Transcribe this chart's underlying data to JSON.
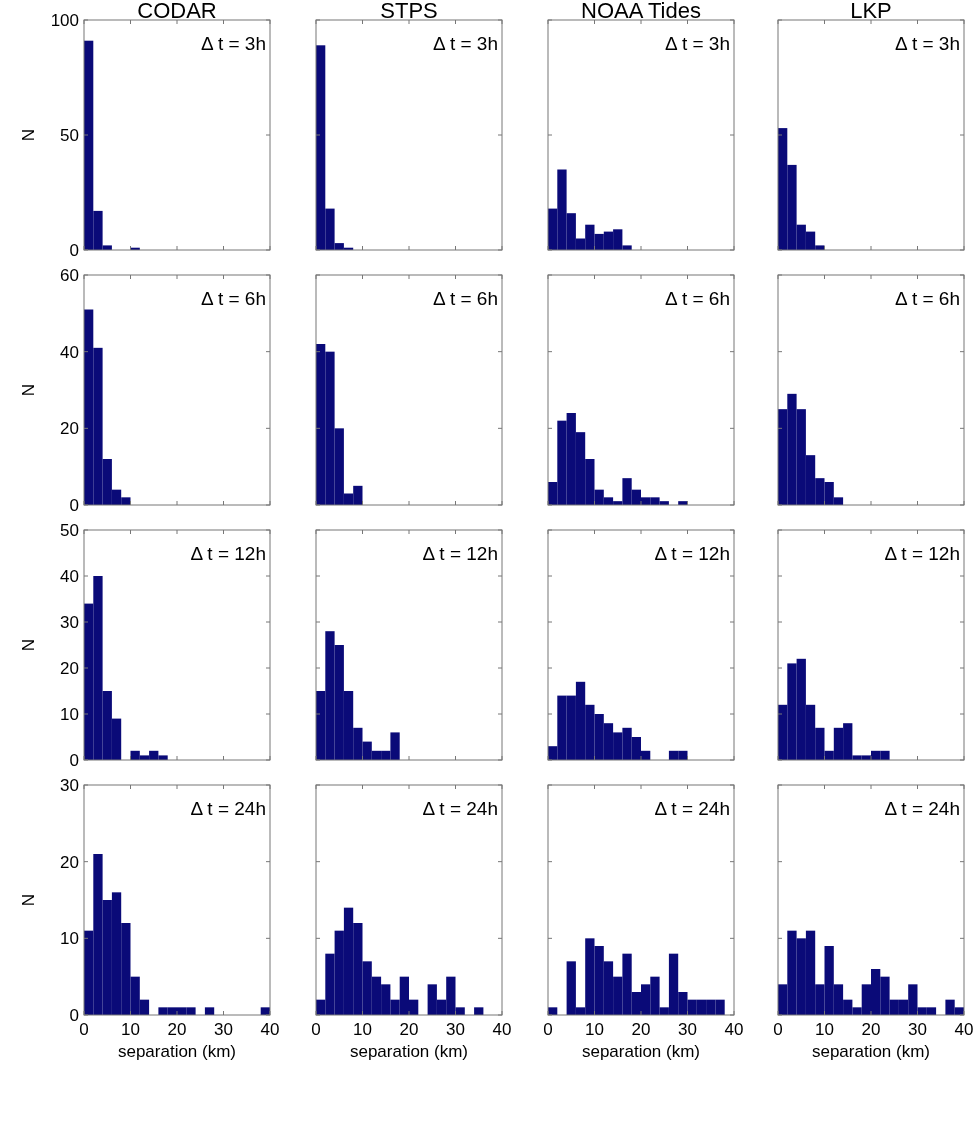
{
  "chart_data": [
    {
      "type": "histogram",
      "title": "CODAR",
      "ylabel": "N",
      "bins": [
        0,
        2,
        4,
        6,
        8,
        10,
        12,
        14,
        16,
        18,
        20,
        22,
        24,
        26,
        28,
        30,
        32,
        34,
        36,
        38,
        40
      ],
      "values": [
        91,
        17,
        2,
        0,
        0,
        1,
        0,
        0,
        0,
        0,
        0,
        0,
        0,
        0,
        0,
        0,
        0,
        0,
        0,
        0
      ],
      "color": "#0a0a78",
      "xlim": [
        0,
        40
      ],
      "xticks": [
        0,
        10,
        20,
        30,
        40
      ],
      "ylim": [
        0,
        100
      ],
      "yticks": [
        0,
        50,
        100
      ],
      "tick_labels": "y",
      "annotations": [
        "Δ t = 3h"
      ]
    },
    {
      "type": "histogram",
      "title": "STPS",
      "bins": [
        0,
        2,
        4,
        6,
        8,
        10,
        12,
        14,
        16,
        18,
        20,
        22,
        24,
        26,
        28,
        30,
        32,
        34,
        36,
        38,
        40
      ],
      "values": [
        89,
        18,
        3,
        1,
        0,
        0,
        0,
        0,
        0,
        0,
        0,
        0,
        0,
        0,
        0,
        0,
        0,
        0,
        0,
        0
      ],
      "color": "#0a0a78",
      "xlim": [
        0,
        40
      ],
      "xticks": [
        0,
        10,
        20,
        30,
        40
      ],
      "ylim": [
        0,
        100
      ],
      "yticks": [
        0,
        50,
        100
      ],
      "tick_labels": false,
      "annotations": [
        "Δ t = 3h"
      ]
    },
    {
      "type": "histogram",
      "title": "NOAA Tides",
      "bins": [
        0,
        2,
        4,
        6,
        8,
        10,
        12,
        14,
        16,
        18,
        20,
        22,
        24,
        26,
        28,
        30,
        32,
        34,
        36,
        38,
        40
      ],
      "values": [
        18,
        35,
        16,
        5,
        11,
        7,
        8,
        9,
        2,
        0,
        0,
        0,
        0,
        0,
        0,
        0,
        0,
        0,
        0,
        0
      ],
      "color": "#0a0a78",
      "xlim": [
        0,
        40
      ],
      "xticks": [
        0,
        10,
        20,
        30,
        40
      ],
      "ylim": [
        0,
        100
      ],
      "yticks": [
        0,
        50,
        100
      ],
      "tick_labels": false,
      "annotations": [
        "Δ t = 3h"
      ]
    },
    {
      "type": "histogram",
      "title": "LKP",
      "bins": [
        0,
        2,
        4,
        6,
        8,
        10,
        12,
        14,
        16,
        18,
        20,
        22,
        24,
        26,
        28,
        30,
        32,
        34,
        36,
        38,
        40
      ],
      "values": [
        53,
        37,
        11,
        8,
        2,
        0,
        0,
        0,
        0,
        0,
        0,
        0,
        0,
        0,
        0,
        0,
        0,
        0,
        0,
        0
      ],
      "color": "#0a0a78",
      "xlim": [
        0,
        40
      ],
      "xticks": [
        0,
        10,
        20,
        30,
        40
      ],
      "ylim": [
        0,
        100
      ],
      "yticks": [
        0,
        50,
        100
      ],
      "tick_labels": false,
      "annotations": [
        "Δ t = 3h"
      ]
    },
    {
      "type": "histogram",
      "ylabel": "N",
      "bins": [
        0,
        2,
        4,
        6,
        8,
        10,
        12,
        14,
        16,
        18,
        20,
        22,
        24,
        26,
        28,
        30,
        32,
        34,
        36,
        38,
        40
      ],
      "values": [
        51,
        41,
        12,
        4,
        2,
        0,
        0,
        0,
        0,
        0,
        0,
        0,
        0,
        0,
        0,
        0,
        0,
        0,
        0,
        0
      ],
      "color": "#0a0a78",
      "xlim": [
        0,
        40
      ],
      "xticks": [
        0,
        10,
        20,
        30,
        40
      ],
      "ylim": [
        0,
        60
      ],
      "yticks": [
        0,
        20,
        40,
        60
      ],
      "tick_labels": "y",
      "annotations": [
        "Δ t = 6h"
      ]
    },
    {
      "type": "histogram",
      "bins": [
        0,
        2,
        4,
        6,
        8,
        10,
        12,
        14,
        16,
        18,
        20,
        22,
        24,
        26,
        28,
        30,
        32,
        34,
        36,
        38,
        40
      ],
      "values": [
        42,
        40,
        20,
        3,
        5,
        0,
        0,
        0,
        0,
        0,
        0,
        0,
        0,
        0,
        0,
        0,
        0,
        0,
        0,
        0
      ],
      "color": "#0a0a78",
      "xlim": [
        0,
        40
      ],
      "xticks": [
        0,
        10,
        20,
        30,
        40
      ],
      "ylim": [
        0,
        60
      ],
      "yticks": [
        0,
        20,
        40,
        60
      ],
      "tick_labels": false,
      "annotations": [
        "Δ t = 6h"
      ]
    },
    {
      "type": "histogram",
      "bins": [
        0,
        2,
        4,
        6,
        8,
        10,
        12,
        14,
        16,
        18,
        20,
        22,
        24,
        26,
        28,
        30,
        32,
        34,
        36,
        38,
        40
      ],
      "values": [
        6,
        22,
        24,
        19,
        12,
        4,
        2,
        1,
        7,
        4,
        2,
        2,
        1,
        0,
        1,
        0,
        0,
        0,
        0,
        0
      ],
      "color": "#0a0a78",
      "xlim": [
        0,
        40
      ],
      "xticks": [
        0,
        10,
        20,
        30,
        40
      ],
      "ylim": [
        0,
        60
      ],
      "yticks": [
        0,
        20,
        40,
        60
      ],
      "tick_labels": false,
      "annotations": [
        "Δ t = 6h"
      ]
    },
    {
      "type": "histogram",
      "bins": [
        0,
        2,
        4,
        6,
        8,
        10,
        12,
        14,
        16,
        18,
        20,
        22,
        24,
        26,
        28,
        30,
        32,
        34,
        36,
        38,
        40
      ],
      "values": [
        25,
        29,
        25,
        13,
        7,
        6,
        2,
        0,
        0,
        0,
        0,
        0,
        0,
        0,
        0,
        0,
        0,
        0,
        0,
        0
      ],
      "color": "#0a0a78",
      "xlim": [
        0,
        40
      ],
      "xticks": [
        0,
        10,
        20,
        30,
        40
      ],
      "ylim": [
        0,
        60
      ],
      "yticks": [
        0,
        20,
        40,
        60
      ],
      "tick_labels": false,
      "annotations": [
        "Δ t = 6h"
      ]
    },
    {
      "type": "histogram",
      "ylabel": "N",
      "bins": [
        0,
        2,
        4,
        6,
        8,
        10,
        12,
        14,
        16,
        18,
        20,
        22,
        24,
        26,
        28,
        30,
        32,
        34,
        36,
        38,
        40
      ],
      "values": [
        34,
        40,
        15,
        9,
        0,
        2,
        1,
        2,
        1,
        0,
        0,
        0,
        0,
        0,
        0,
        0,
        0,
        0,
        0,
        0
      ],
      "color": "#0a0a78",
      "xlim": [
        0,
        40
      ],
      "xticks": [
        0,
        10,
        20,
        30,
        40
      ],
      "ylim": [
        0,
        50
      ],
      "yticks": [
        0,
        10,
        20,
        30,
        40,
        50
      ],
      "tick_labels": "y",
      "annotations": [
        "Δ t = 12h"
      ]
    },
    {
      "type": "histogram",
      "bins": [
        0,
        2,
        4,
        6,
        8,
        10,
        12,
        14,
        16,
        18,
        20,
        22,
        24,
        26,
        28,
        30,
        32,
        34,
        36,
        38,
        40
      ],
      "values": [
        15,
        28,
        25,
        15,
        7,
        4,
        2,
        2,
        6,
        0,
        0,
        0,
        0,
        0,
        0,
        0,
        0,
        0,
        0,
        0
      ],
      "color": "#0a0a78",
      "xlim": [
        0,
        40
      ],
      "xticks": [
        0,
        10,
        20,
        30,
        40
      ],
      "ylim": [
        0,
        50
      ],
      "yticks": [
        0,
        10,
        20,
        30,
        40,
        50
      ],
      "tick_labels": false,
      "annotations": [
        "Δ t = 12h"
      ]
    },
    {
      "type": "histogram",
      "bins": [
        0,
        2,
        4,
        6,
        8,
        10,
        12,
        14,
        16,
        18,
        20,
        22,
        24,
        26,
        28,
        30,
        32,
        34,
        36,
        38,
        40
      ],
      "values": [
        3,
        14,
        14,
        17,
        12,
        10,
        8,
        6,
        7,
        5,
        2,
        0,
        0,
        2,
        2,
        0,
        0,
        0,
        0,
        0
      ],
      "color": "#0a0a78",
      "xlim": [
        0,
        40
      ],
      "xticks": [
        0,
        10,
        20,
        30,
        40
      ],
      "ylim": [
        0,
        50
      ],
      "yticks": [
        0,
        10,
        20,
        30,
        40,
        50
      ],
      "tick_labels": false,
      "annotations": [
        "Δ t = 12h"
      ]
    },
    {
      "type": "histogram",
      "bins": [
        0,
        2,
        4,
        6,
        8,
        10,
        12,
        14,
        16,
        18,
        20,
        22,
        24,
        26,
        28,
        30,
        32,
        34,
        36,
        38,
        40
      ],
      "values": [
        12,
        21,
        22,
        12,
        7,
        2,
        7,
        8,
        1,
        1,
        2,
        2,
        0,
        0,
        0,
        0,
        0,
        0,
        0,
        0
      ],
      "color": "#0a0a78",
      "xlim": [
        0,
        40
      ],
      "xticks": [
        0,
        10,
        20,
        30,
        40
      ],
      "ylim": [
        0,
        50
      ],
      "yticks": [
        0,
        10,
        20,
        30,
        40,
        50
      ],
      "tick_labels": false,
      "annotations": [
        "Δ t = 12h"
      ]
    },
    {
      "type": "histogram",
      "ylabel": "N",
      "xlabel": "separation (km)",
      "bins": [
        0,
        2,
        4,
        6,
        8,
        10,
        12,
        14,
        16,
        18,
        20,
        22,
        24,
        26,
        28,
        30,
        32,
        34,
        36,
        38,
        40
      ],
      "values": [
        11,
        21,
        15,
        16,
        12,
        5,
        2,
        0,
        1,
        1,
        1,
        1,
        0,
        1,
        0,
        0,
        0,
        0,
        0,
        1
      ],
      "color": "#0a0a78",
      "xlim": [
        0,
        40
      ],
      "xticks": [
        0,
        10,
        20,
        30,
        40
      ],
      "ylim": [
        0,
        30
      ],
      "yticks": [
        0,
        10,
        20,
        30
      ],
      "annotations": [
        "Δ t = 24h"
      ]
    },
    {
      "type": "histogram",
      "xlabel": "separation (km)",
      "bins": [
        0,
        2,
        4,
        6,
        8,
        10,
        12,
        14,
        16,
        18,
        20,
        22,
        24,
        26,
        28,
        30,
        32,
        34,
        36,
        38,
        40
      ],
      "values": [
        2,
        8,
        11,
        14,
        12,
        7,
        5,
        4,
        2,
        5,
        2,
        0,
        4,
        2,
        5,
        1,
        0,
        1,
        0,
        0
      ],
      "color": "#0a0a78",
      "xlim": [
        0,
        40
      ],
      "xticks": [
        0,
        10,
        20,
        30,
        40
      ],
      "ylim": [
        0,
        30
      ],
      "yticks": [
        0,
        10,
        20,
        30
      ],
      "tick_labels": "x",
      "annotations": [
        "Δ t = 24h"
      ]
    },
    {
      "type": "histogram",
      "xlabel": "separation (km)",
      "bins": [
        0,
        2,
        4,
        6,
        8,
        10,
        12,
        14,
        16,
        18,
        20,
        22,
        24,
        26,
        28,
        30,
        32,
        34,
        36,
        38,
        40
      ],
      "values": [
        1,
        0,
        7,
        1,
        10,
        9,
        7,
        5,
        8,
        3,
        4,
        5,
        1,
        8,
        3,
        2,
        2,
        2,
        2,
        0
      ],
      "color": "#0a0a78",
      "xlim": [
        0,
        40
      ],
      "xticks": [
        0,
        10,
        20,
        30,
        40
      ],
      "ylim": [
        0,
        30
      ],
      "yticks": [
        0,
        10,
        20,
        30
      ],
      "tick_labels": "x",
      "annotations": [
        "Δ t = 24h"
      ]
    },
    {
      "type": "histogram",
      "xlabel": "separation (km)",
      "bins": [
        0,
        2,
        4,
        6,
        8,
        10,
        12,
        14,
        16,
        18,
        20,
        22,
        24,
        26,
        28,
        30,
        32,
        34,
        36,
        38,
        40
      ],
      "values": [
        4,
        11,
        10,
        11,
        4,
        9,
        4,
        2,
        1,
        4,
        6,
        5,
        2,
        2,
        4,
        1,
        1,
        0,
        2,
        1
      ],
      "color": "#0a0a78",
      "xlim": [
        0,
        40
      ],
      "xticks": [
        0,
        10,
        20,
        30,
        40
      ],
      "ylim": [
        0,
        30
      ],
      "yticks": [
        0,
        10,
        20,
        30
      ],
      "tick_labels": "x",
      "annotations": [
        "Δ t = 24h"
      ]
    }
  ]
}
